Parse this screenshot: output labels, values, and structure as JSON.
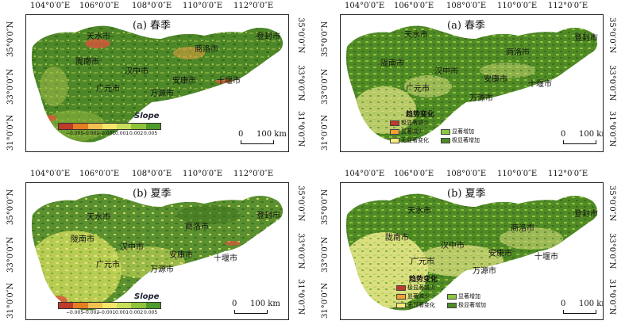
{
  "lon_labels": [
    "104°0′0″E",
    "106°0′0″E",
    "108°0′0″E",
    "110°0′0″E",
    "112°0′0″E"
  ],
  "lat_labels_left": [
    "35°0′0″N",
    "33°0′0″N",
    "31°0′0″N"
  ],
  "lat_labels_right": [
    "35°0′0″N",
    "33°0′0″N",
    "31°0′0″N"
  ],
  "panels": {
    "a1": {
      "title": "(a) 春季"
    },
    "a2": {
      "title": "(a) 春季"
    },
    "b1": {
      "title": "(b) 夏季"
    },
    "b2": {
      "title": "(b) 夏季"
    }
  },
  "cities": {
    "tianshui": "天水市",
    "dengfeng": "登封市",
    "shangluo": "商洛市",
    "longnan": "陇南市",
    "hanzhong": "汉中市",
    "ankang": "安康市",
    "shiyan": "十堰市",
    "guangyuan": "广元市",
    "wanyuan": "万源市"
  },
  "slope_legend": {
    "title": "Slope",
    "ticks": [
      "−0.005",
      "−0.002",
      "−0.001",
      "0.001",
      "0.002",
      "0.005"
    ],
    "colors": [
      "#c0392b",
      "#e67e22",
      "#f2c14e",
      "#f5e76a",
      "#c9de5a",
      "#8fc43a",
      "#4e9a2a"
    ]
  },
  "trend_legend": {
    "title": "趋势变化",
    "items": [
      {
        "label": "极显著减少",
        "color": "#c0392b"
      },
      {
        "label": "显著减少",
        "color": "#f0a030"
      },
      {
        "label": "无显著变化",
        "color": "#f5ec7a"
      },
      {
        "label": "显著增加",
        "color": "#8dc63f"
      },
      {
        "label": "极显著增加",
        "color": "#4e8a26"
      }
    ]
  },
  "scale": {
    "zero": "0",
    "label": "100 km"
  },
  "colors": {
    "veg_dark": "#3f7a22",
    "veg_mid": "#6b9e2e",
    "veg_light": "#b9cf4a",
    "veg_pale": "#e7e58a",
    "veg_red": "#d9553a"
  }
}
